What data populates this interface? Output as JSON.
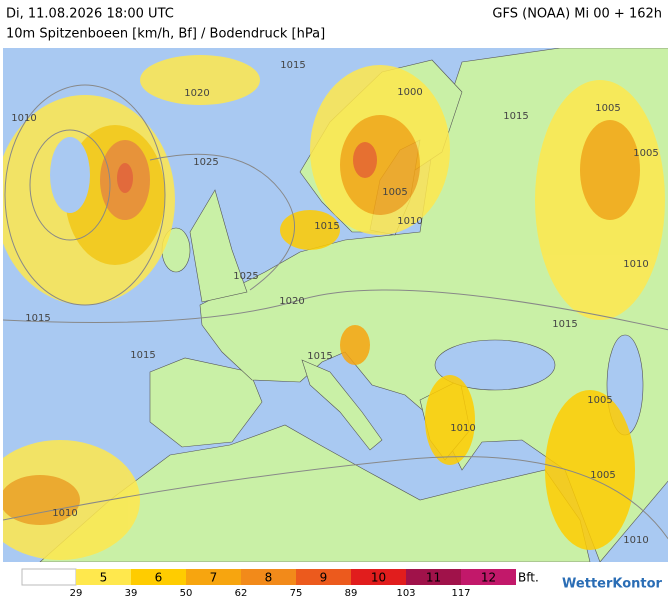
{
  "header": {
    "left": "Di, 11.08.2026 18:00 UTC",
    "right": "GFS (NOAA) Mi 00 + 162h",
    "subtitle": "10m Spitzenboeen [km/h, Bf] / Bodendruck [hPa]"
  },
  "map": {
    "isobar_labels": [
      "1015",
      "1020",
      "1010",
      "1025",
      "1000",
      "1015",
      "1005",
      "1005",
      "1005",
      "1010",
      "1015",
      "1025",
      "1020",
      "1015",
      "1010",
      "1015",
      "1015",
      "1015",
      "1005",
      "1010",
      "1005",
      "1010",
      "1010"
    ]
  },
  "legend": {
    "classes": [
      {
        "label": "5",
        "color": "#ffe84d"
      },
      {
        "label": "6",
        "color": "#ffcc00"
      },
      {
        "label": "7",
        "color": "#f7a50f"
      },
      {
        "label": "8",
        "color": "#f28a1a"
      },
      {
        "label": "9",
        "color": "#ec5a1d"
      },
      {
        "label": "10",
        "color": "#e11d1d"
      },
      {
        "label": "11",
        "color": "#a0124a"
      },
      {
        "label": "12",
        "color": "#c2186a"
      }
    ],
    "thresholds": [
      "29",
      "39",
      "50",
      "62",
      "75",
      "89",
      "103",
      "117"
    ],
    "unit": "Bft."
  },
  "logo": "WetterKontor"
}
